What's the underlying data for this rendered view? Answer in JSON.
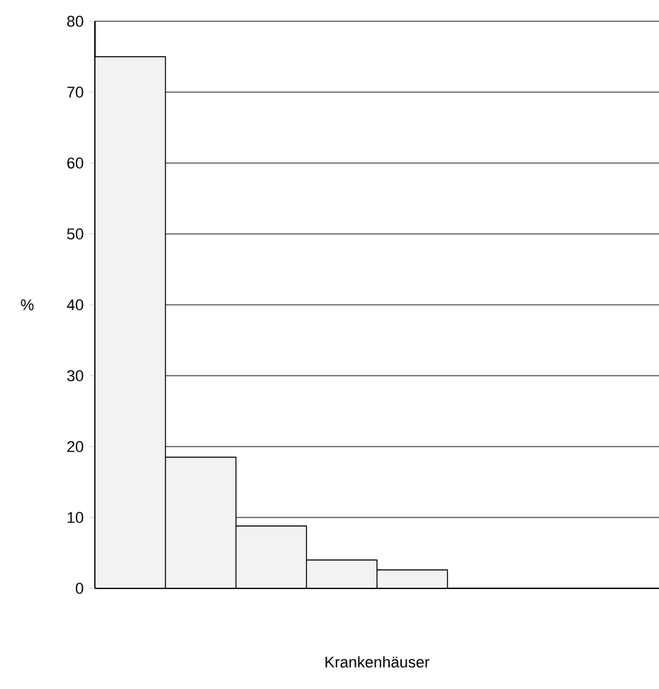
{
  "chart_data": {
    "type": "bar",
    "xlabel": "Krankenhäuser",
    "ylabel": "%",
    "categories": [
      null,
      null,
      null,
      null,
      null,
      null,
      null,
      null
    ],
    "values": [
      75,
      18.5,
      8.8,
      4,
      2.6,
      null,
      null,
      null
    ],
    "color": "#f2f2f2",
    "ylim": [
      0,
      80
    ],
    "yticks": [
      0,
      10,
      20,
      30,
      40,
      50,
      60,
      70,
      80
    ],
    "grid": "y"
  }
}
